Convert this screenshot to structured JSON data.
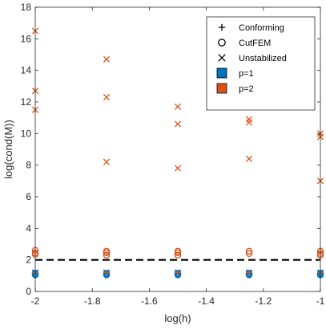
{
  "chart_data": {
    "type": "scatter",
    "xlabel": "log(h)",
    "ylabel": "log(cond(M))",
    "xlim": [
      -2,
      -1
    ],
    "ylim": [
      0,
      18
    ],
    "xticks": [
      -2,
      -1.8,
      -1.6,
      -1.4,
      -1.2,
      -1
    ],
    "xtick_labels": [
      "-2",
      "-1.8",
      "-1.6",
      "-1.4",
      "-1.2",
      "-1"
    ],
    "yticks": [
      0,
      2,
      4,
      6,
      8,
      10,
      12,
      14,
      16,
      18
    ],
    "ytick_labels": [
      "0",
      "2",
      "4",
      "6",
      "8",
      "10",
      "12",
      "14",
      "16",
      "18"
    ],
    "grid": false,
    "legend_position": "top-right",
    "legend": [
      {
        "label": "Conforming",
        "marker": "plus",
        "color": "#000000"
      },
      {
        "label": "CutFEM",
        "marker": "circle",
        "color": "#000000"
      },
      {
        "label": "Unstabilized",
        "marker": "x",
        "color": "#000000"
      },
      {
        "label": "p=1",
        "marker": "square",
        "color": "#0072BD"
      },
      {
        "label": "p=2",
        "marker": "square",
        "color": "#D95319"
      }
    ],
    "colors": {
      "p1": "#0072BD",
      "p2": "#D95319",
      "reference": "#000000"
    },
    "reference_line": {
      "y": 2,
      "style": "dashed"
    },
    "series": [
      {
        "method": "Conforming",
        "order": "p=1",
        "marker": "plus",
        "x": [
          -2,
          -1.75,
          -1.5,
          -1.25,
          -1
        ],
        "y": [
          1.15,
          1.15,
          1.15,
          1.15,
          1.15
        ]
      },
      {
        "method": "Conforming",
        "order": "p=2",
        "marker": "plus",
        "x": [
          -2,
          -1.75,
          -1.5,
          -1.25,
          -1
        ],
        "y": [
          1.2,
          1.2,
          1.2,
          1.2,
          1.2
        ]
      },
      {
        "method": "CutFEM",
        "order": "p=1",
        "marker": "circle",
        "x": [
          -2,
          -2,
          -2,
          -1.75,
          -1.75,
          -1.75,
          -1.5,
          -1.5,
          -1.5,
          -1.25,
          -1.25,
          -1.25,
          -1,
          -1,
          -1
        ],
        "y": [
          1.05,
          1.1,
          1.15,
          1.05,
          1.1,
          1.15,
          1.05,
          1.1,
          1.15,
          1.05,
          1.1,
          1.15,
          1.05,
          1.1,
          1.15
        ]
      },
      {
        "method": "CutFEM",
        "order": "p=2",
        "marker": "circle",
        "x": [
          -2,
          -2,
          -2,
          -1.75,
          -1.75,
          -1.75,
          -1.5,
          -1.5,
          -1.5,
          -1.25,
          -1.25,
          -1,
          -1,
          -1
        ],
        "y": [
          2.35,
          2.45,
          2.6,
          2.3,
          2.45,
          2.55,
          2.3,
          2.45,
          2.55,
          2.4,
          2.55,
          2.3,
          2.4,
          2.55
        ]
      },
      {
        "method": "Unstabilized",
        "order": "p=1",
        "marker": "x",
        "x": [
          -2,
          -2,
          -1.75,
          -1.75,
          -1.5,
          -1.5,
          -1.25,
          -1.25,
          -1,
          -1
        ],
        "y": [
          1.15,
          1.2,
          1.15,
          1.2,
          1.15,
          1.2,
          1.15,
          1.2,
          1.15,
          1.2
        ]
      },
      {
        "method": "Unstabilized",
        "order": "p=2",
        "marker": "x",
        "x": [
          -2,
          -2,
          -2,
          -1.75,
          -1.75,
          -1.75,
          -1.5,
          -1.5,
          -1.5,
          -1.25,
          -1.25,
          -1.25,
          -1,
          -1,
          -1
        ],
        "y": [
          16.5,
          12.7,
          11.5,
          14.7,
          12.3,
          8.2,
          11.7,
          10.6,
          7.8,
          10.9,
          10.7,
          8.4,
          10.0,
          9.8,
          7.0
        ]
      }
    ]
  }
}
